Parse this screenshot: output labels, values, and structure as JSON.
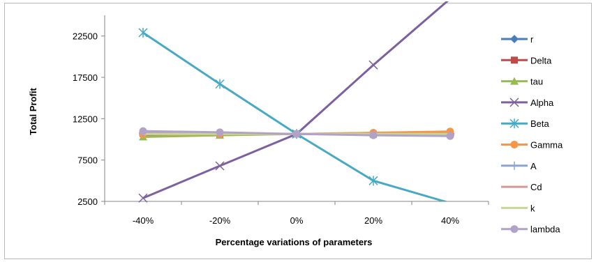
{
  "chart_data": {
    "type": "line",
    "title": "",
    "xlabel": "Percentage variations of parameters",
    "ylabel": "Total Profit",
    "categories": [
      "-40%",
      "-20%",
      "0%",
      "20%",
      "40%"
    ],
    "yticks": [
      "2500",
      "7500",
      "12500",
      "17500",
      "22500"
    ],
    "ylim": [
      2500,
      25000
    ],
    "grid": false,
    "legend_position": "right",
    "series": [
      {
        "name": "r",
        "values": [
          10500,
          10600,
          10650,
          10700,
          10750
        ],
        "color": "#4a7ebb",
        "marker": "diamond"
      },
      {
        "name": "Delta",
        "values": [
          10700,
          10650,
          10650,
          10620,
          10600
        ],
        "color": "#be4b48",
        "marker": "square"
      },
      {
        "name": "tau",
        "values": [
          10300,
          10500,
          10650,
          10750,
          10800
        ],
        "color": "#98b954",
        "marker": "triangle"
      },
      {
        "name": "Alpha",
        "values": [
          2900,
          6800,
          10650,
          19000,
          27000
        ],
        "color": "#7d60a0",
        "marker": "x"
      },
      {
        "name": "Beta",
        "values": [
          22900,
          16700,
          10650,
          5000,
          2300
        ],
        "color": "#46aac5",
        "marker": "star"
      },
      {
        "name": "Gamma",
        "values": [
          10600,
          10620,
          10650,
          10800,
          10950
        ],
        "color": "#f79646",
        "marker": "circle"
      },
      {
        "name": "A",
        "values": [
          10800,
          10700,
          10650,
          10600,
          10550
        ],
        "color": "#8ca5d0",
        "marker": "plus"
      },
      {
        "name": "Cd",
        "values": [
          10700,
          10680,
          10650,
          10620,
          10600
        ],
        "color": "#d99694",
        "marker": "dash"
      },
      {
        "name": "k",
        "values": [
          10650,
          10650,
          10650,
          10650,
          10650
        ],
        "color": "#c3d69b",
        "marker": "none"
      },
      {
        "name": "lambda",
        "values": [
          11000,
          10850,
          10650,
          10500,
          10400
        ],
        "color": "#b3a2c7",
        "marker": "circle"
      }
    ]
  }
}
